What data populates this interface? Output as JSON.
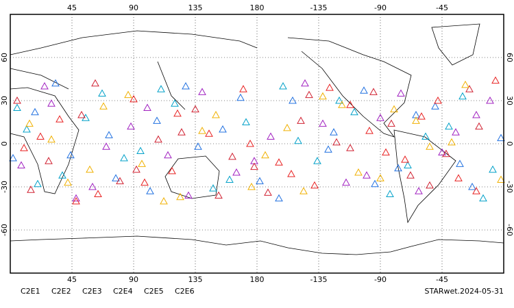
{
  "chart_data": {
    "type": "scatter",
    "xlim": [
      0,
      360
    ],
    "ylim": [
      -90,
      90
    ],
    "xticks": [
      45,
      90,
      135,
      180,
      {
        "value": 225,
        "label": "-135"
      },
      {
        "value": 270,
        "label": "-90"
      },
      {
        "value": 315,
        "label": "-45"
      }
    ],
    "yticks": [
      -60,
      -30,
      0,
      30,
      60
    ],
    "grid": true,
    "annotation": "STARwet.2024-05-31",
    "series": [
      {
        "name": "C2E1",
        "color": "#00a0c8",
        "x": [
          12,
          38,
          67,
          95,
          120,
          148,
          172,
          199,
          224,
          251,
          277,
          303,
          330,
          352,
          20,
          55,
          83,
          110,
          160,
          210,
          240,
          290,
          320,
          345,
          5
        ],
        "values": [
          10,
          -22,
          35,
          -5,
          28,
          -31,
          15,
          40,
          -12,
          22,
          -35,
          5,
          33,
          -18,
          -28,
          18,
          -10,
          38,
          -25,
          2,
          30,
          -15,
          12,
          -38,
          25
        ]
      },
      {
        "name": "C2E2",
        "color": "#a020c0",
        "x": [
          8,
          30,
          60,
          88,
          115,
          140,
          165,
          190,
          215,
          245,
          270,
          298,
          325,
          350,
          25,
          70,
          100,
          130,
          178,
          228,
          260,
          285,
          315,
          340,
          48
        ],
        "values": [
          -15,
          28,
          -30,
          12,
          -8,
          36,
          -20,
          5,
          42,
          -27,
          18,
          -33,
          8,
          30,
          40,
          -2,
          25,
          -36,
          -12,
          14,
          -22,
          35,
          -6,
          20,
          -38
        ]
      },
      {
        "name": "C2E3",
        "color": "#2070e0",
        "x": [
          18,
          44,
          72,
          102,
          128,
          155,
          182,
          206,
          232,
          258,
          283,
          310,
          337,
          2,
          33,
          77,
          107,
          137,
          168,
          196,
          236,
          266,
          296,
          328,
          358
        ],
        "values": [
          22,
          -8,
          6,
          -33,
          40,
          10,
          -26,
          30,
          -4,
          37,
          -17,
          26,
          -30,
          -10,
          42,
          -24,
          16,
          -2,
          32,
          -38,
          8,
          -28,
          20,
          -14,
          4
        ]
      },
      {
        "name": "C2E4",
        "color": "#d02030",
        "x": [
          5,
          28,
          52,
          80,
          108,
          135,
          162,
          188,
          212,
          238,
          265,
          292,
          318,
          342,
          15,
          62,
          92,
          125,
          152,
          218,
          248,
          278,
          306,
          335,
          178
        ],
        "values": [
          30,
          -12,
          20,
          -26,
          3,
          24,
          -9,
          -34,
          16,
          1,
          36,
          -22,
          -7,
          12,
          -32,
          42,
          -18,
          8,
          -36,
          34,
          -3,
          14,
          -29,
          38,
          -16
        ]
      },
      {
        "name": "C2E5",
        "color": "#e82020",
        "x": [
          10,
          36,
          64,
          90,
          118,
          145,
          170,
          196,
          222,
          248,
          274,
          300,
          327,
          354,
          22,
          48,
          98,
          122,
          175,
          205,
          233,
          262,
          288,
          312,
          340
        ],
        "values": [
          -3,
          17,
          -35,
          31,
          -19,
          7,
          38,
          -13,
          -29,
          27,
          -6,
          19,
          -24,
          44,
          5,
          -40,
          -27,
          21,
          0,
          -21,
          39,
          9,
          -11,
          30,
          -33
        ]
      },
      {
        "name": "C2E6",
        "color": "#f0b000",
        "x": [
          14,
          42,
          68,
          96,
          124,
          150,
          176,
          202,
          228,
          254,
          280,
          306,
          332,
          358,
          30,
          58,
          86,
          112,
          140,
          186,
          214,
          242,
          270,
          296,
          322
        ],
        "values": [
          14,
          -27,
          26,
          -14,
          -37,
          20,
          -30,
          11,
          33,
          -20,
          24,
          -2,
          41,
          -25,
          3,
          -18,
          34,
          -40,
          9,
          -8,
          -33,
          27,
          -24,
          16,
          1
        ]
      }
    ]
  }
}
